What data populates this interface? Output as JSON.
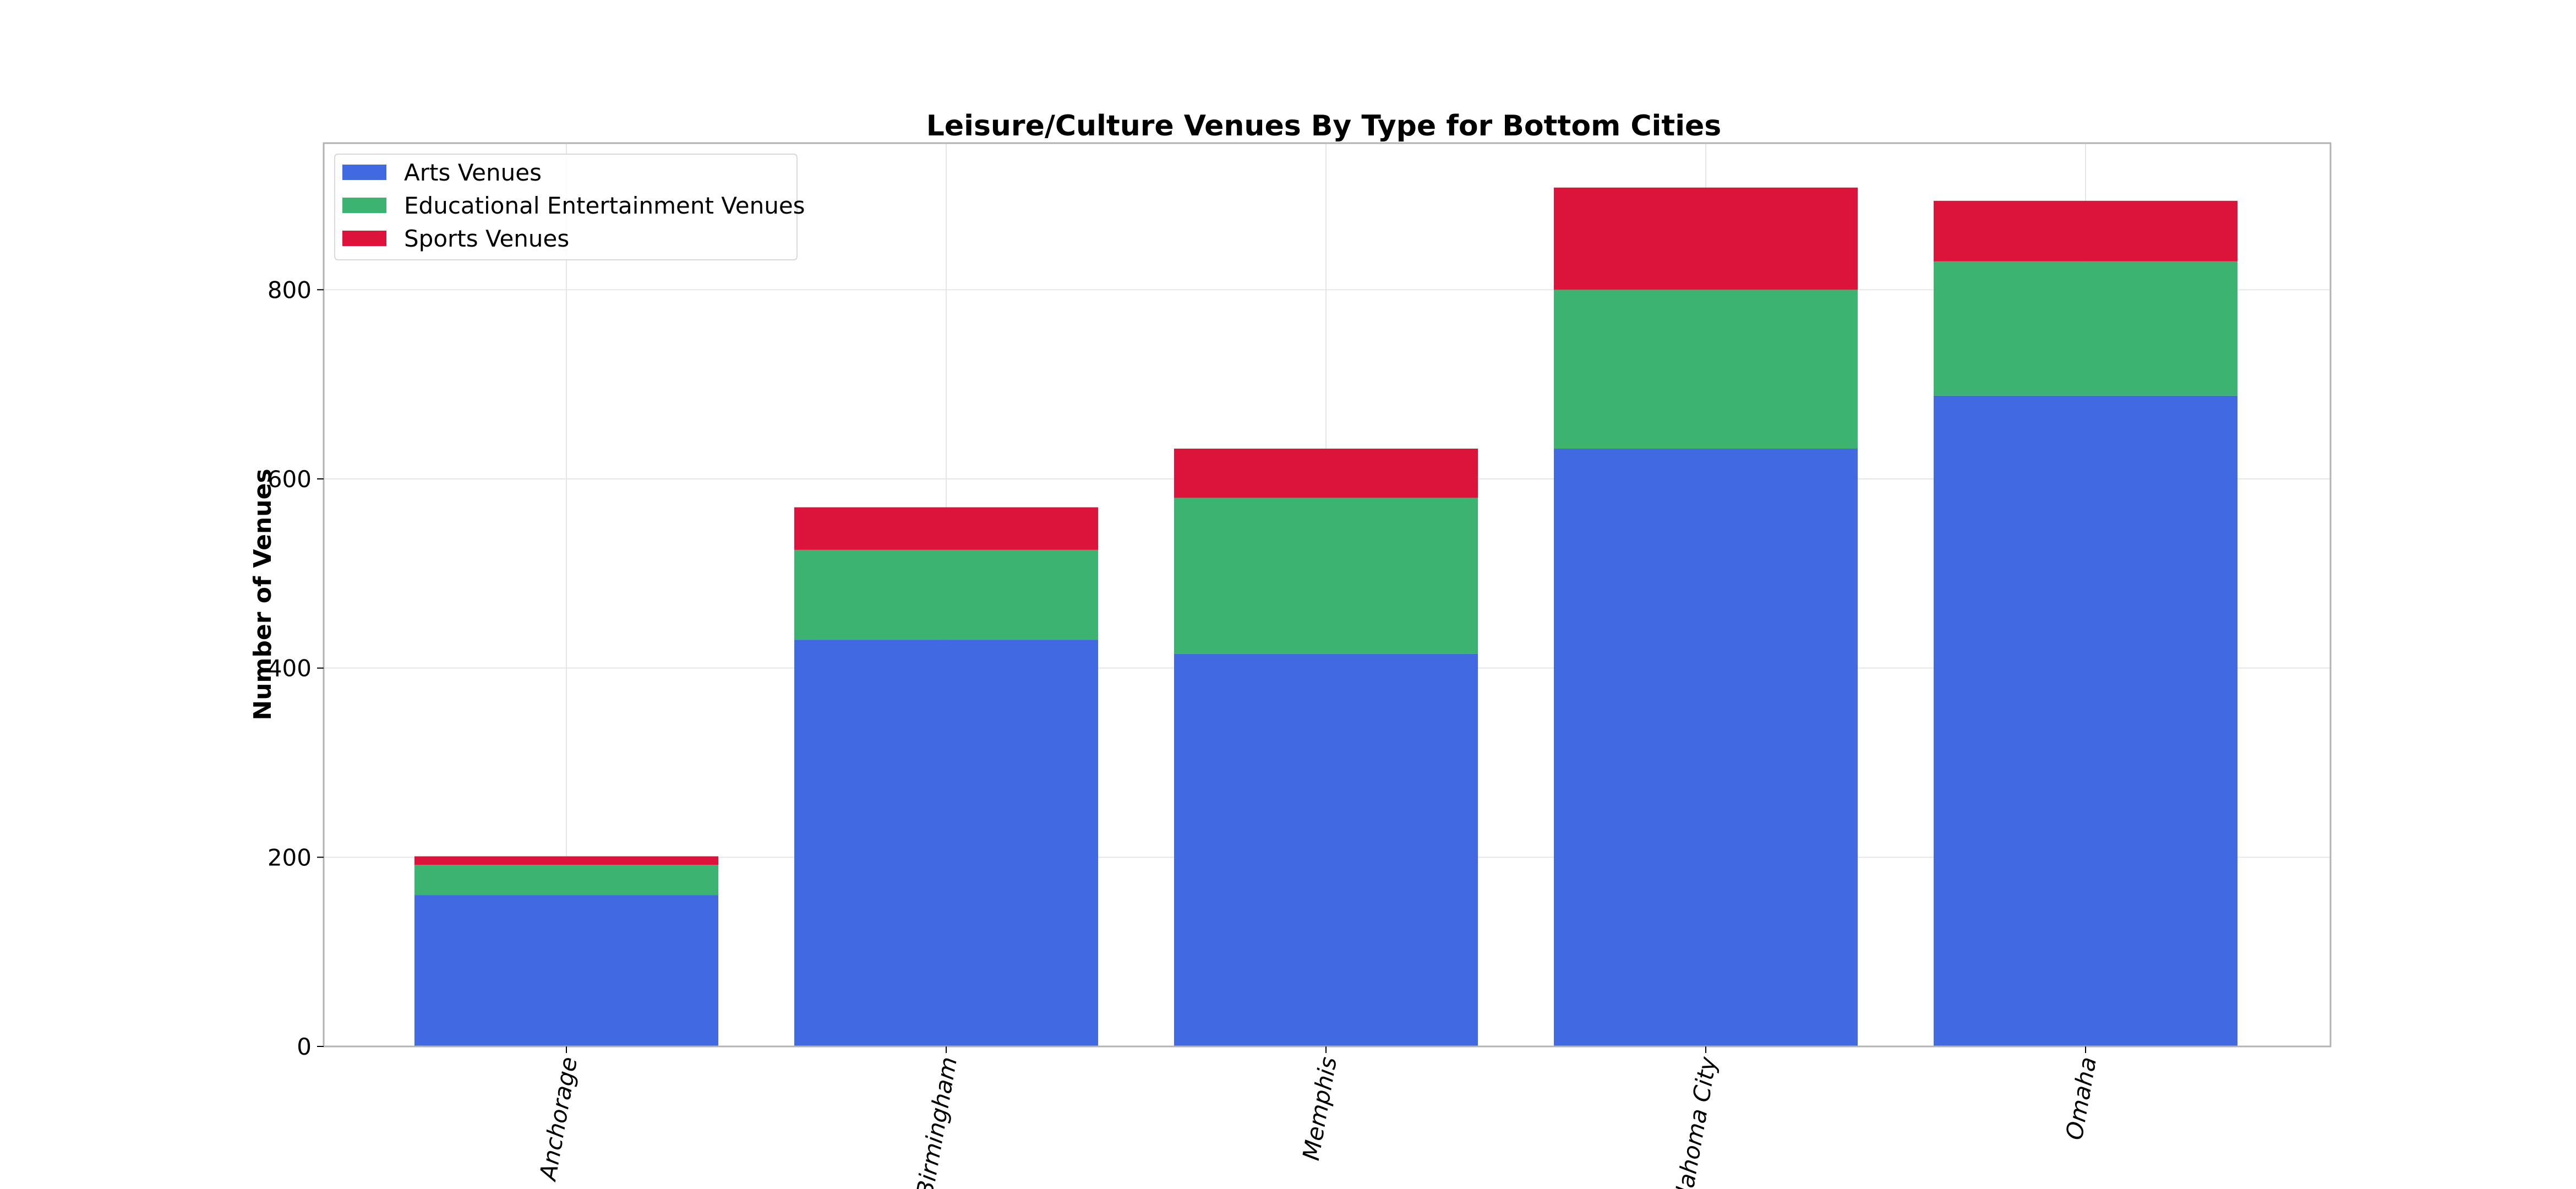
{
  "chart_data": {
    "type": "bar",
    "stacked": true,
    "title": "Leisure/Culture Venues By Type for Bottom Cities",
    "xlabel": "",
    "ylabel": "Number of Venues",
    "categories": [
      "Anchorage",
      "Birmingham",
      "Memphis",
      "Oklahoma City",
      "Omaha"
    ],
    "series": [
      {
        "name": "Arts Venues",
        "color": "#4169E1",
        "values": [
          160,
          430,
          415,
          632,
          688
        ]
      },
      {
        "name": "Educational Entertainment Venues",
        "color": "#3CB371",
        "values": [
          32,
          95,
          165,
          168,
          142
        ]
      },
      {
        "name": "Sports Venues",
        "color": "#DC143C",
        "values": [
          9,
          45,
          52,
          108,
          64
        ]
      }
    ],
    "ylim": [
      0,
      955
    ],
    "yticks": [
      0,
      200,
      400,
      600,
      800
    ],
    "grid": true,
    "legend_position": "top-left"
  }
}
